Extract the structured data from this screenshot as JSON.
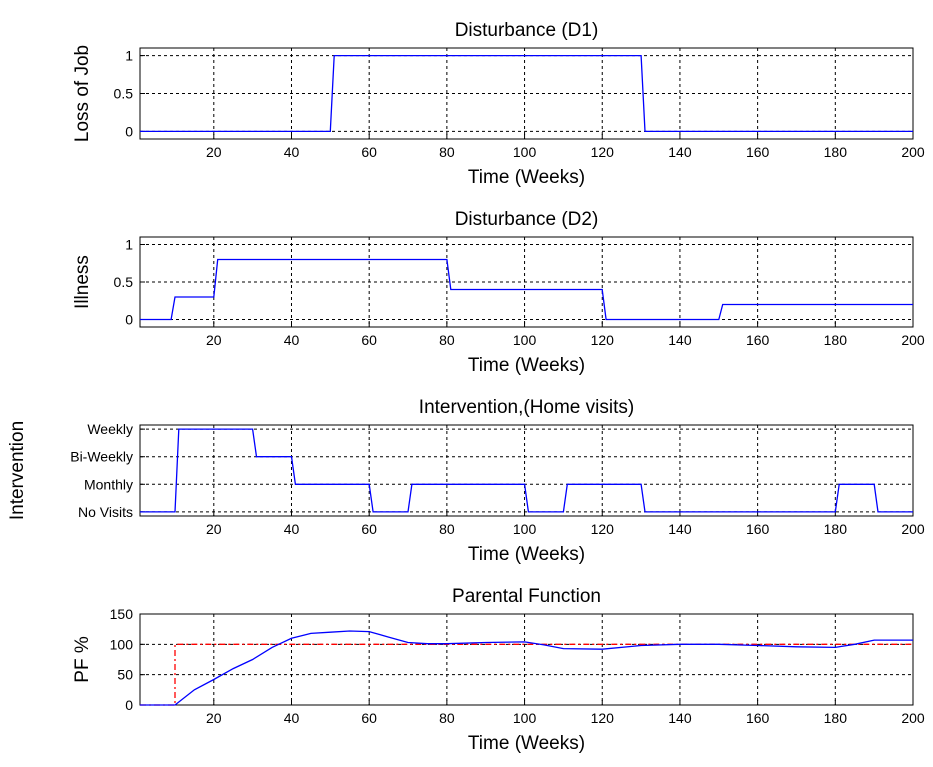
{
  "chart_data": [
    {
      "type": "line",
      "title": "Disturbance (D1)",
      "xlabel": "Time (Weeks)",
      "ylabel": "Loss of Job",
      "xlim": [
        1,
        200
      ],
      "ylim": [
        -0.1,
        1.1
      ],
      "xticks": [
        20,
        40,
        60,
        80,
        100,
        120,
        140,
        160,
        180,
        200
      ],
      "yticks": [
        {
          "value": 0,
          "label": "0"
        },
        {
          "value": 0.5,
          "label": "0.5"
        },
        {
          "value": 1,
          "label": "1"
        }
      ],
      "grid": true,
      "series": [
        {
          "color": "#0000ff",
          "dash": "",
          "x": [
            1,
            50,
            51,
            130,
            131,
            200
          ],
          "y": [
            0,
            0,
            1,
            1,
            0,
            0
          ]
        }
      ]
    },
    {
      "type": "line",
      "title": "Disturbance (D2)",
      "xlabel": "Time (Weeks)",
      "ylabel": "Illness",
      "xlim": [
        1,
        200
      ],
      "ylim": [
        -0.1,
        1.1
      ],
      "xticks": [
        20,
        40,
        60,
        80,
        100,
        120,
        140,
        160,
        180,
        200
      ],
      "yticks": [
        {
          "value": 0,
          "label": "0"
        },
        {
          "value": 0.5,
          "label": "0.5"
        },
        {
          "value": 1,
          "label": "1"
        }
      ],
      "grid": true,
      "series": [
        {
          "color": "#0000ff",
          "dash": "",
          "x": [
            1,
            9,
            10,
            20,
            21,
            80,
            81,
            120,
            121,
            150,
            151,
            200
          ],
          "y": [
            0,
            0,
            0.3,
            0.3,
            0.8,
            0.8,
            0.4,
            0.4,
            0,
            0,
            0.2,
            0.2
          ]
        }
      ]
    },
    {
      "type": "line",
      "title": "Intervention,(Home visits)",
      "xlabel": "Time (Weeks)",
      "ylabel": "Intervention",
      "xlim": [
        1,
        200
      ],
      "ylim": [
        0.85,
        4.15
      ],
      "xticks": [
        20,
        40,
        60,
        80,
        100,
        120,
        140,
        160,
        180,
        200
      ],
      "yticks": [
        {
          "value": 1,
          "label": "No Visits"
        },
        {
          "value": 2,
          "label": "Monthly"
        },
        {
          "value": 3,
          "label": "Bi-Weekly"
        },
        {
          "value": 4,
          "label": "Weekly"
        }
      ],
      "grid": true,
      "series": [
        {
          "color": "#0000ff",
          "dash": "",
          "x": [
            1,
            10,
            11,
            30,
            31,
            40,
            41,
            60,
            61,
            70,
            71,
            100,
            101,
            110,
            111,
            130,
            131,
            180,
            181,
            190,
            191,
            200
          ],
          "y": [
            1,
            1,
            4,
            4,
            3,
            3,
            2,
            2,
            1,
            1,
            2,
            2,
            1,
            1,
            2,
            2,
            1,
            1,
            2,
            2,
            1,
            1
          ]
        }
      ]
    },
    {
      "type": "line",
      "title": "Parental Function",
      "xlabel": "Time (Weeks)",
      "ylabel": "PF %",
      "xlim": [
        1,
        200
      ],
      "ylim": [
        0,
        150
      ],
      "xticks": [
        20,
        40,
        60,
        80,
        100,
        120,
        140,
        160,
        180,
        200
      ],
      "yticks": [
        {
          "value": 0,
          "label": "0"
        },
        {
          "value": 50,
          "label": "50"
        },
        {
          "value": 100,
          "label": "100"
        },
        {
          "value": 150,
          "label": "150"
        }
      ],
      "grid": true,
      "series": [
        {
          "color": "#ff0000",
          "dash": "6,3,2,3",
          "x": [
            1,
            10,
            10,
            200
          ],
          "y": [
            0,
            0,
            100,
            100
          ]
        },
        {
          "color": "#0000ff",
          "dash": "",
          "x": [
            1,
            10,
            15,
            20,
            25,
            30,
            35,
            40,
            45,
            50,
            55,
            60,
            65,
            70,
            75,
            80,
            90,
            100,
            105,
            110,
            120,
            130,
            140,
            150,
            160,
            170,
            180,
            185,
            190,
            200
          ],
          "y": [
            0,
            0,
            25,
            42,
            60,
            75,
            95,
            110,
            118,
            120,
            122,
            121,
            112,
            103,
            101,
            101,
            103,
            104,
            99,
            93,
            92,
            98,
            100,
            100,
            98,
            96,
            95,
            100,
            107,
            107
          ]
        }
      ]
    }
  ]
}
